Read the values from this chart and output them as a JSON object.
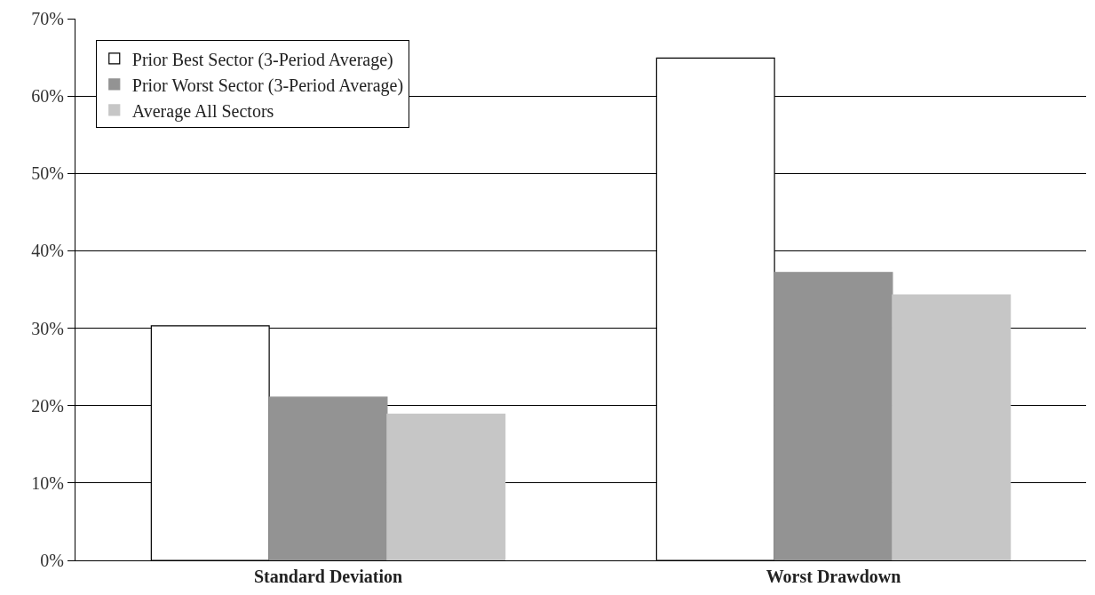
{
  "chart_data": {
    "type": "bar",
    "categories": [
      "Standard Deviation",
      "Worst Drawdown"
    ],
    "series": [
      {
        "name": "Prior Best Sector (3-Period Average)",
        "color": "#ffffff",
        "values": [
          30.3,
          64.9
        ]
      },
      {
        "name": "Prior Worst Sector (3-Period Average)",
        "color": "#939393",
        "values": [
          21.1,
          37.2
        ]
      },
      {
        "name": "Average All Sectors",
        "color": "#c6c6c6",
        "values": [
          18.9,
          34.3
        ]
      }
    ],
    "ylim": [
      0,
      70
    ],
    "yticks": [
      {
        "value": 0,
        "label": "0%"
      },
      {
        "value": 10,
        "label": "10%"
      },
      {
        "value": 20,
        "label": "20%"
      },
      {
        "value": 30,
        "label": "30%"
      },
      {
        "value": 40,
        "label": "40%"
      },
      {
        "value": 50,
        "label": "50%"
      },
      {
        "value": 60,
        "label": "60%"
      },
      {
        "value": 70,
        "label": "70%"
      }
    ],
    "grid": "y",
    "legend": "top left"
  }
}
